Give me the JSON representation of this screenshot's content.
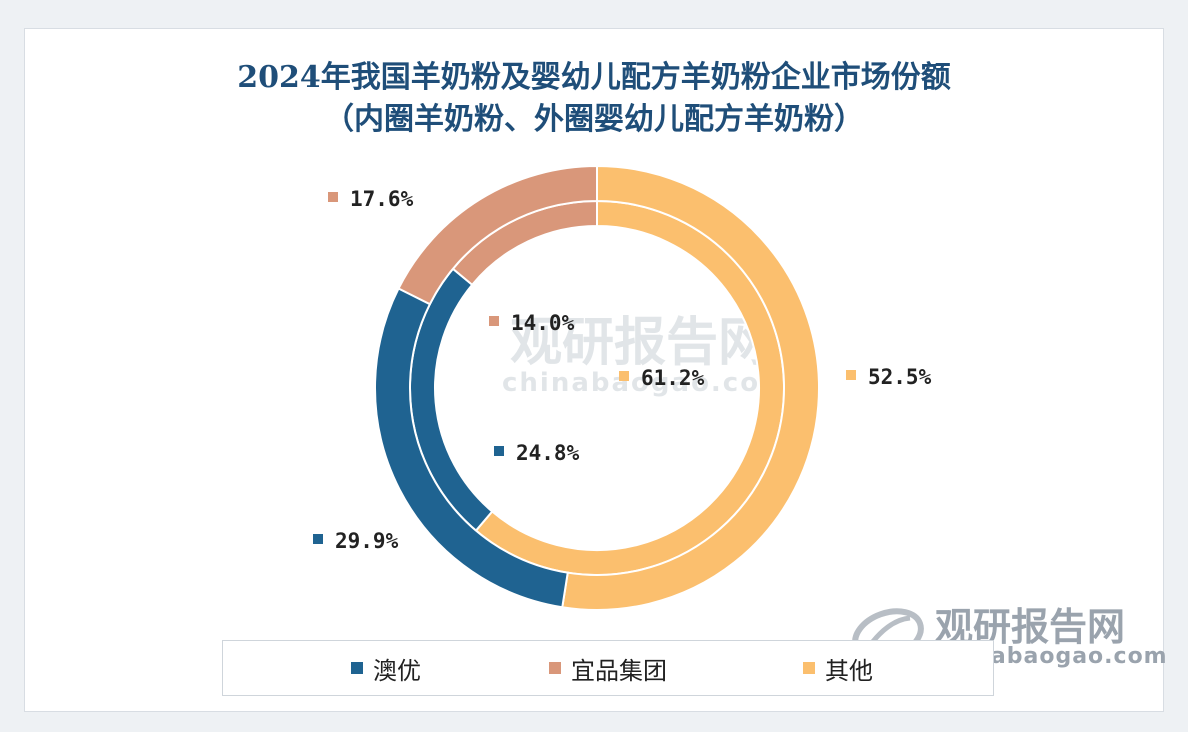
{
  "chart_data": {
    "type": "pie",
    "title": "2024年我国羊奶粉及婴幼儿配方羊奶粉企业市场份额",
    "subtitle": "（内圈羊奶粉、外圈婴幼儿配方羊奶粉）",
    "categories": [
      "澳优",
      "宜品集团",
      "其他"
    ],
    "colors": [
      "#1f6391",
      "#d9977a",
      "#fbbf6e"
    ],
    "series": [
      {
        "name": "羊奶粉",
        "ring": "inner",
        "values": [
          24.8,
          14.0,
          61.2
        ]
      },
      {
        "name": "婴幼儿配方羊奶粉",
        "ring": "outer",
        "values": [
          29.9,
          17.6,
          52.5
        ]
      }
    ],
    "label_suffix": "%",
    "legend_position": "bottom"
  },
  "watermark": {
    "brand_cn": "观研报告网",
    "brand_en": "chinabaogao.com"
  }
}
